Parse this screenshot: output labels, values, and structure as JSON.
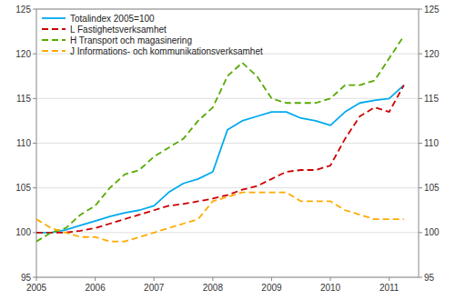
{
  "chart_data": {
    "type": "line",
    "x": [
      2005.0,
      2005.25,
      2005.5,
      2005.75,
      2006.0,
      2006.25,
      2006.5,
      2006.75,
      2007.0,
      2007.25,
      2007.5,
      2007.75,
      2008.0,
      2008.25,
      2008.5,
      2008.75,
      2009.0,
      2009.25,
      2009.5,
      2009.75,
      2010.0,
      2010.25,
      2010.5,
      2010.75,
      2011.0,
      2011.25
    ],
    "series": [
      {
        "name": "Totalindex 2005=100",
        "color": "#00aaee",
        "line_style": "solid",
        "values": [
          100.0,
          100.0,
          100.3,
          100.8,
          101.3,
          101.8,
          102.2,
          102.5,
          103.0,
          104.5,
          105.5,
          106.0,
          106.8,
          111.5,
          112.5,
          113.0,
          113.5,
          113.5,
          112.8,
          112.5,
          112.0,
          113.5,
          114.5,
          114.8,
          115.0,
          116.5
        ]
      },
      {
        "name": "L Fastighetsverksamhet",
        "color": "#cc0000",
        "line_style": "dashed",
        "values": [
          100.0,
          100.0,
          100.0,
          100.2,
          100.5,
          101.0,
          101.5,
          102.0,
          102.5,
          103.0,
          103.2,
          103.5,
          103.8,
          104.2,
          104.8,
          105.2,
          106.0,
          106.8,
          107.0,
          107.0,
          107.5,
          110.5,
          113.0,
          114.0,
          113.5,
          116.5
        ]
      },
      {
        "name": "H Transport och magasinering",
        "color": "#55aa00",
        "line_style": "dashed",
        "values": [
          99.0,
          100.0,
          100.5,
          102.0,
          103.0,
          105.0,
          106.5,
          107.0,
          108.5,
          109.5,
          110.5,
          112.5,
          114.0,
          117.5,
          119.0,
          117.5,
          115.0,
          114.5,
          114.5,
          114.5,
          115.0,
          116.5,
          116.5,
          117.0,
          119.5,
          122.0
        ]
      },
      {
        "name": "J Informations- och kommunikationsverksamhet",
        "color": "#ffaa00",
        "line_style": "dashed",
        "values": [
          101.5,
          100.5,
          100.0,
          99.5,
          99.5,
          99.0,
          99.0,
          99.5,
          100.0,
          100.5,
          101.0,
          101.5,
          103.5,
          104.0,
          104.5,
          104.5,
          104.5,
          104.5,
          103.5,
          103.5,
          103.5,
          102.5,
          102.0,
          101.5,
          101.5,
          101.5
        ]
      }
    ],
    "xlim": [
      2005.0,
      2011.5
    ],
    "xticks": [
      2005,
      2006,
      2007,
      2008,
      2009,
      2010,
      2011
    ],
    "ylim": [
      95,
      125
    ],
    "yticks": [
      95,
      100,
      105,
      110,
      115,
      120,
      125
    ],
    "y2lim": [
      95,
      125
    ],
    "y2ticks": [
      95,
      100,
      105,
      110,
      115,
      120,
      125
    ],
    "grid": true,
    "legend": "upper left"
  }
}
